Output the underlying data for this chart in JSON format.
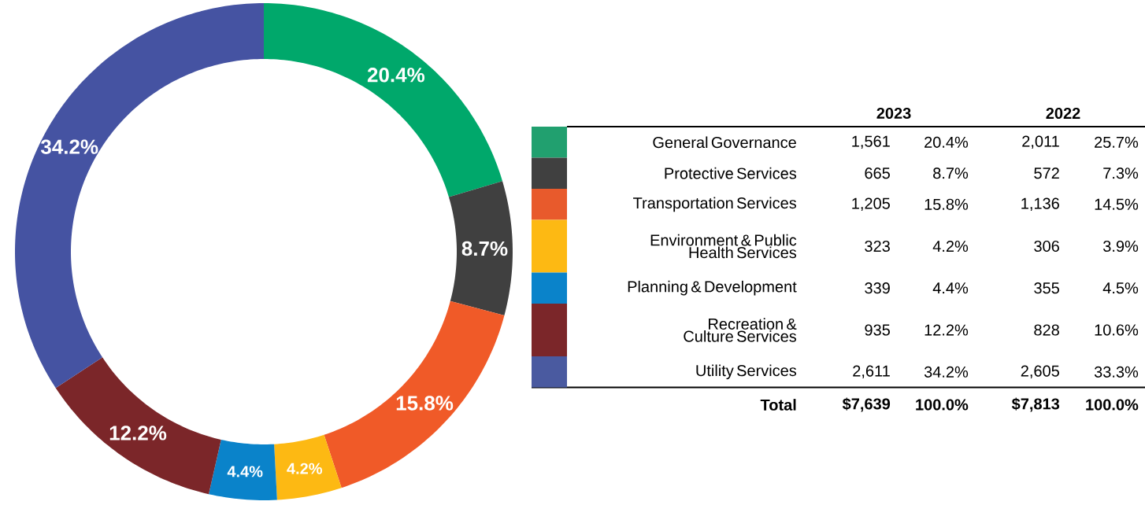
{
  "chart_data": [
    {
      "type": "donut",
      "categories": [
        null,
        null,
        null,
        null,
        null,
        null,
        null
      ],
      "values": [
        20.4,
        8.7,
        15.8,
        4.2,
        4.4,
        12.2,
        34.2
      ],
      "colors": [
        "#00a86b",
        "#404040",
        "#f05a28",
        "#fdb913",
        "#0a83ca",
        "#7b2629",
        "#4553a2"
      ],
      "value_labels": [
        "20.4%",
        "8.7%",
        "15.8%",
        "4.2%",
        "4.4%",
        "12.2%",
        "34.2%"
      ]
    },
    {
      "type": "other",
      "categories": [
        "General Governance",
        "Protective Services",
        "Transportation Services",
        "Environment & Public Health Services",
        "Planning & Development",
        "Recreation & Culture Services",
        "Utility Services"
      ],
      "colors": [
        "#21a06f",
        "#404040",
        "#e85a2c",
        "#fdb913",
        "#0a83ca",
        "#7b2629",
        "#4a5aa0"
      ],
      "annotations": [
        "2023",
        "2022",
        "1,561",
        "20.4%",
        "2,011",
        "25.7%",
        "665",
        "8.7%",
        "572",
        "7.3%",
        "1,205",
        "15.8%",
        "1,136",
        "14.5%",
        "323",
        "4.2%",
        "306",
        "3.9%",
        "339",
        "4.4%",
        "355",
        "4.5%",
        "935",
        "12.2%",
        "828",
        "10.6%",
        "2,611",
        "34.2%",
        "2,605",
        "33.3%",
        "Total"
      ],
      "totals": [
        "$7,639",
        "100.0%",
        "$7,813",
        "100.0%"
      ]
    }
  ]
}
